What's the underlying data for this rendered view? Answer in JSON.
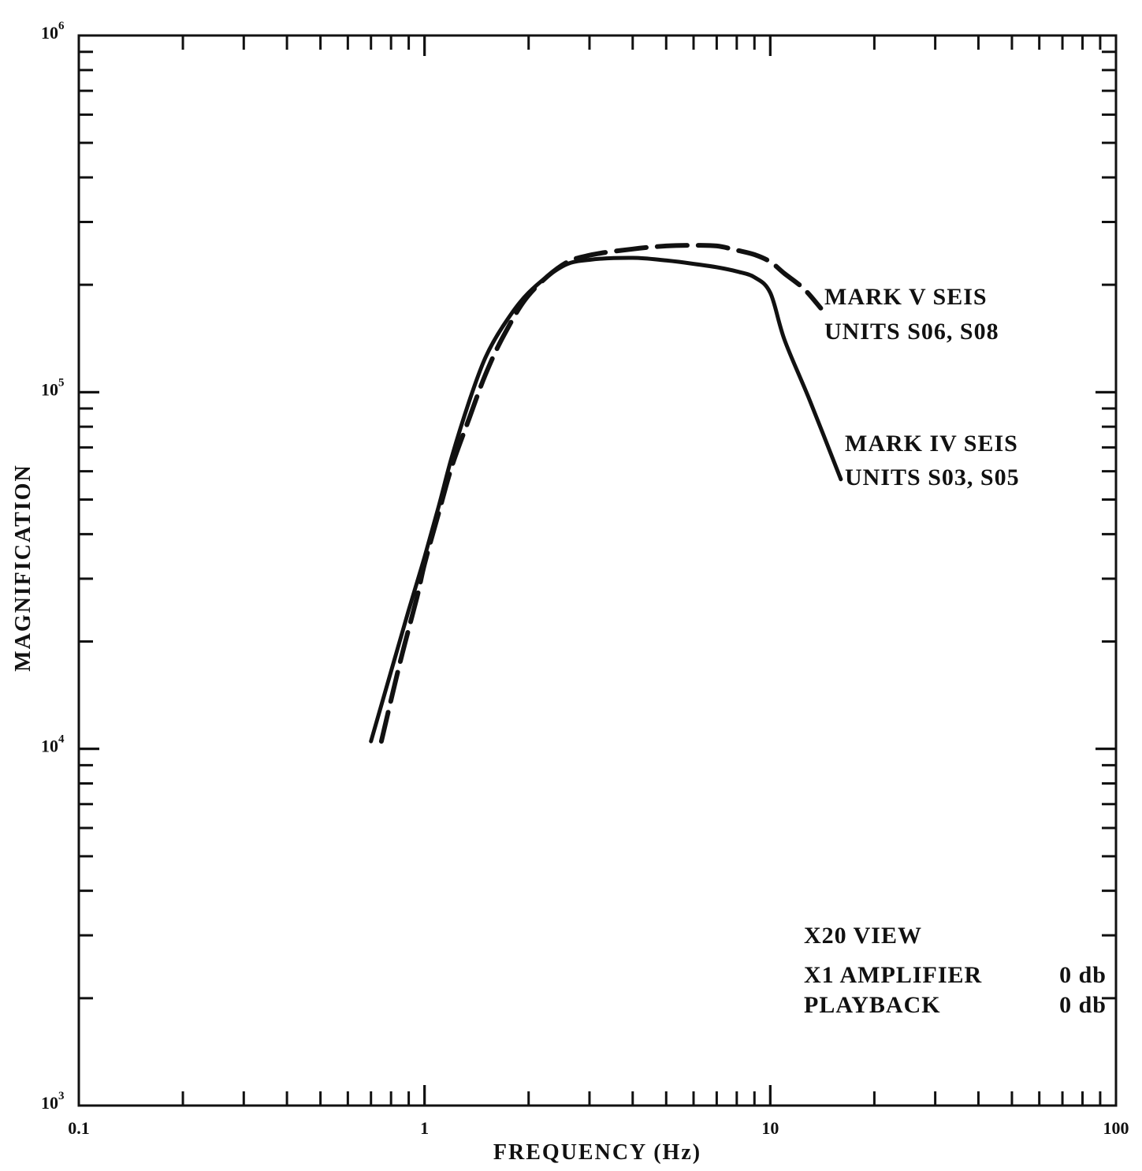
{
  "chart_data": {
    "type": "line",
    "xlabel": "FREQUENCY (Hz)",
    "ylabel": "MAGNIFICATION",
    "xscale": "log",
    "yscale": "log",
    "xlim": [
      0.1,
      100
    ],
    "ylim": [
      1000,
      1000000
    ],
    "x_tick_labels": [
      "0.1",
      "1",
      "10",
      "100"
    ],
    "y_tick_labels": [
      {
        "base": "10",
        "exp": "3"
      },
      {
        "base": "10",
        "exp": "4"
      },
      {
        "base": "10",
        "exp": "5"
      },
      {
        "base": "10",
        "exp": "6"
      }
    ],
    "series": [
      {
        "style": "solid",
        "label_lines": [
          "MARK IV SEIS",
          "UNITS S03,  S05"
        ],
        "x": [
          0.7,
          0.8,
          0.9,
          1.0,
          1.1,
          1.2,
          1.35,
          1.5,
          1.7,
          2.0,
          2.5,
          3.0,
          4.0,
          5.0,
          6.0,
          7.0,
          8.0,
          9.0,
          10.0,
          11.0,
          13.0,
          16.0
        ],
        "y": [
          10500,
          16500,
          24500,
          34500,
          48000,
          66000,
          95000,
          125000,
          155000,
          190000,
          225000,
          235000,
          238000,
          234000,
          229000,
          224000,
          218000,
          210000,
          190000,
          140000,
          95000,
          57000
        ]
      },
      {
        "style": "dashed",
        "label_lines": [
          "MARK V SEIS",
          "UNITS S06,  S08"
        ],
        "x": [
          0.75,
          0.85,
          0.95,
          1.0,
          1.1,
          1.2,
          1.35,
          1.5,
          1.7,
          2.0,
          2.5,
          3.0,
          4.0,
          5.0,
          6.0,
          7.0,
          8.0,
          9.0,
          10.0,
          11.0,
          12.5,
          14.0
        ],
        "y": [
          10500,
          17500,
          26500,
          33000,
          46000,
          62000,
          85000,
          112000,
          145000,
          187000,
          227000,
          242000,
          252000,
          257000,
          258000,
          257000,
          250000,
          243000,
          232000,
          215000,
          195000,
          172000
        ]
      }
    ]
  },
  "notes": {
    "line1": "X20 VIEW",
    "line2_left": "X1 AMPLIFIER",
    "line2_right": "0 db",
    "line3_left": "PLAYBACK",
    "line3_right": "0 db"
  }
}
